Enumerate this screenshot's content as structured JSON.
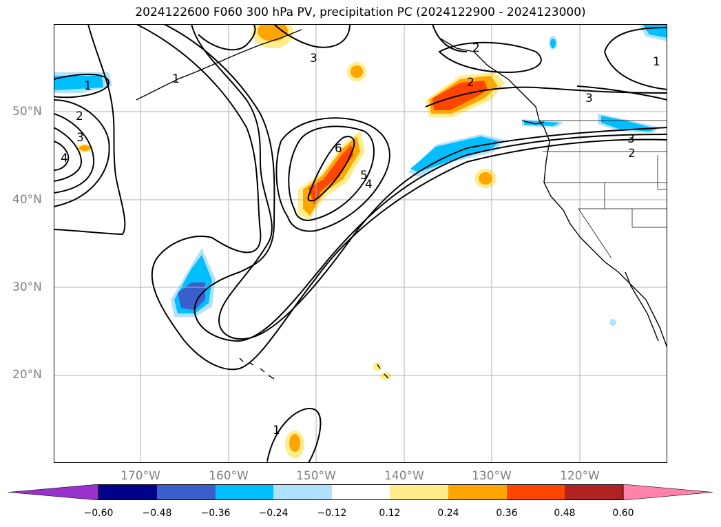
{
  "title": "2024122600 F060 300 hPa PV, precipitation PC (2024122900 - 2024123000)",
  "lat_labels": [
    "50°N",
    "40°N",
    "30°N",
    "20°N"
  ],
  "lon_labels": [
    "170°W",
    "160°W",
    "150°W",
    "140°W",
    "130°W",
    "120°W"
  ],
  "contour_labels": [
    "1",
    "2",
    "3",
    "4",
    "1",
    "2",
    "3",
    "3",
    "2",
    "1",
    "6",
    "5",
    "4",
    "3",
    "2",
    "1"
  ],
  "colorbar": {
    "ticks": [
      "−0.60",
      "−0.48",
      "−0.36",
      "−0.24",
      "−0.12",
      "0.12",
      "0.24",
      "0.36",
      "0.48",
      "0.60"
    ],
    "colors": [
      "#9932cc",
      "#00008b",
      "#3a5fcd",
      "#00bfff",
      "#b0e2ff",
      "#ffffff",
      "#ffec8b",
      "#ffa500",
      "#ff4500",
      "#b22222",
      "#ff82ab"
    ]
  }
}
